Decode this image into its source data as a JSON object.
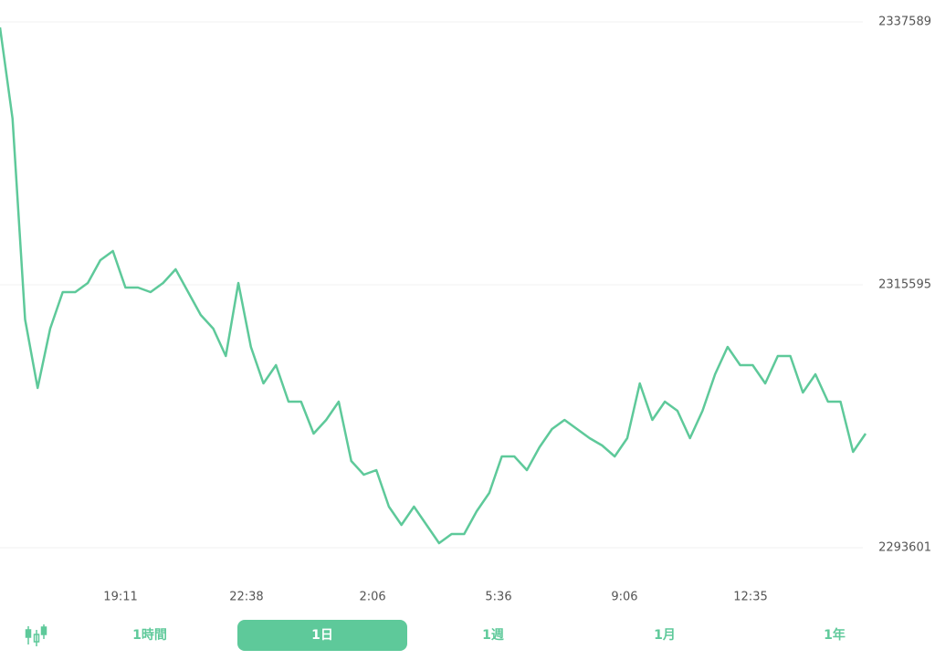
{
  "chart_data": {
    "type": "line",
    "x": [
      0,
      1,
      2,
      3,
      4,
      5,
      6,
      7,
      8,
      9,
      10,
      11,
      12,
      13,
      14,
      15,
      16,
      17,
      18,
      19,
      20,
      21,
      22,
      23,
      24,
      25,
      26,
      27,
      28,
      29,
      30,
      31,
      32,
      33,
      34,
      35,
      36,
      37,
      38,
      39,
      40,
      41,
      42,
      43,
      44,
      45,
      46,
      47,
      48,
      49,
      50,
      51,
      52,
      53,
      54,
      55,
      56,
      57,
      58,
      59,
      60,
      61,
      62,
      63,
      64,
      65,
      66,
      67,
      68,
      69
    ],
    "series": [
      {
        "color": "#5ec99a",
        "values": [
          2337131,
          2329494,
          2312693,
          2306965,
          2311929,
          2314984,
          2314984,
          2315748,
          2317657,
          2318421,
          2315366,
          2315366,
          2314984,
          2315748,
          2316893,
          2314984,
          2313075,
          2311929,
          2309638,
          2315748,
          2310402,
          2307347,
          2308875,
          2305820,
          2305820,
          2303147,
          2304293,
          2305820,
          2300856,
          2299710,
          2300092,
          2297038,
          2295510,
          2297038,
          2295510,
          2293983,
          2294747,
          2294747,
          2296656,
          2298183,
          2301238,
          2301238,
          2300092,
          2302002,
          2303529,
          2304293,
          2303529,
          2302765,
          2302154,
          2301238,
          2302765,
          2307347,
          2304293,
          2305820,
          2305056,
          2302765,
          2305056,
          2308111,
          2310402,
          2308875,
          2308875,
          2307347,
          2309638,
          2309638,
          2306583,
          2308111,
          2305820,
          2305820,
          2301620,
          2303147
        ]
      }
    ],
    "xlim": [
      0,
      69
    ],
    "xticks": [
      {
        "value": 9.61,
        "label": "19:11"
      },
      {
        "value": 19.65,
        "label": "22:38"
      },
      {
        "value": 29.7,
        "label": "2:06"
      },
      {
        "value": 39.74,
        "label": "5:36"
      },
      {
        "value": 49.78,
        "label": "9:06"
      },
      {
        "value": 59.83,
        "label": "12:35"
      }
    ],
    "ylim": [
      2293601,
      2337589
    ],
    "yticks": [
      2293601,
      2315595,
      2337589
    ],
    "grid": true
  },
  "tabs": {
    "items": [
      "1時間",
      "1日",
      "1週",
      "1月",
      "1年"
    ],
    "selected": 1
  }
}
